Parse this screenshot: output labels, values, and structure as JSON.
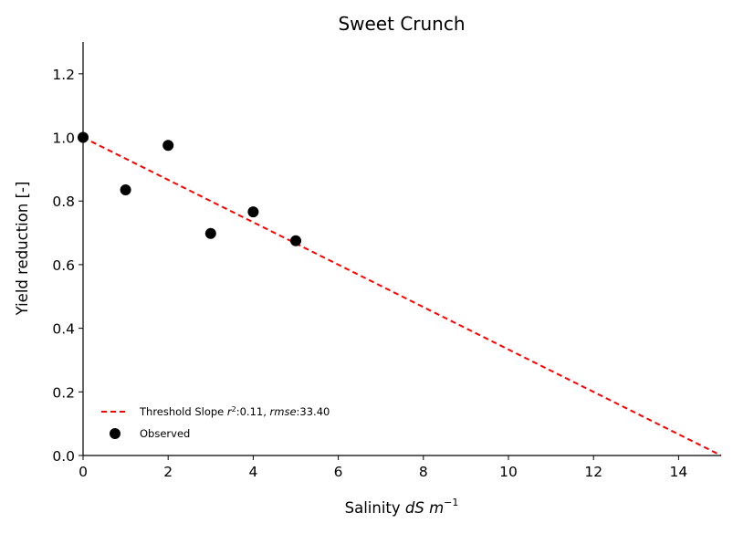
{
  "chart_data": {
    "type": "scatter",
    "title": "Sweet Crunch",
    "xlabel": {
      "prefix": "Salinity ",
      "var": "dS m",
      "exp": "−1"
    },
    "ylabel": "Yield reduction [-]",
    "xlim": [
      0,
      15
    ],
    "ylim": [
      0,
      1.3
    ],
    "xticks": [
      0,
      2,
      4,
      6,
      8,
      10,
      12,
      14
    ],
    "yticks": [
      0.0,
      0.2,
      0.4,
      0.6,
      0.8,
      1.0,
      1.2
    ],
    "xtick_labels": [
      "0",
      "2",
      "4",
      "6",
      "8",
      "10",
      "12",
      "14"
    ],
    "ytick_labels": [
      "0.0",
      "0.2",
      "0.4",
      "0.6",
      "0.8",
      "1.0",
      "1.2"
    ],
    "grid": false,
    "legend_position": "lower-left",
    "series": [
      {
        "name": "Threshold Slope",
        "kind": "dashed-line",
        "color": "#ff0000",
        "x": [
          0,
          15
        ],
        "y": [
          1.0,
          0.0
        ]
      },
      {
        "name": "Observed",
        "kind": "scatter",
        "color": "#000000",
        "x": [
          0,
          1,
          2,
          3,
          4,
          5
        ],
        "y": [
          1.0,
          0.835,
          0.975,
          0.698,
          0.766,
          0.675
        ]
      }
    ],
    "legend": {
      "line_label_prefix": "Threshold Slope ",
      "r2_sym": "r",
      "r2_sup": "2",
      "r2_value": ":0.11, ",
      "rmse_sym": "rmse",
      "rmse_value": ":33.40",
      "scatter_label": "Observed"
    }
  }
}
